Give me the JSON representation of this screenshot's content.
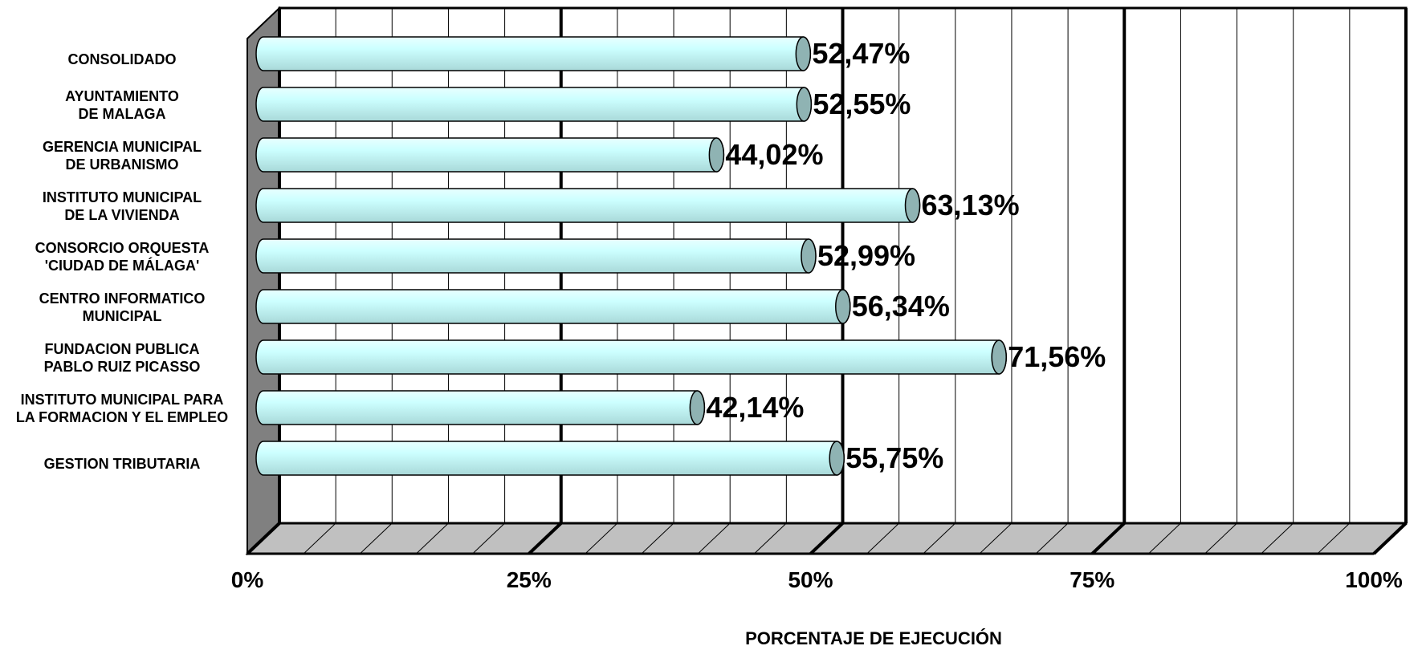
{
  "chart_data": {
    "type": "bar",
    "orientation": "horizontal",
    "style": "3d-cylinder",
    "categories": [
      "CONSOLIDADO",
      "AYUNTAMIENTO\nDE MALAGA",
      "GERENCIA MUNICIPAL\nDE URBANISMO",
      "INSTITUTO MUNICIPAL\nDE LA VIVIENDA",
      "CONSORCIO ORQUESTA\n'CIUDAD DE MÁLAGA'",
      "CENTRO INFORMATICO\nMUNICIPAL",
      "FUNDACION PUBLICA\nPABLO RUIZ PICASSO",
      "INSTITUTO MUNICIPAL PARA\nLA FORMACION Y EL EMPLEO",
      "GESTION TRIBUTARIA"
    ],
    "values": [
      52.47,
      52.55,
      44.02,
      63.13,
      52.99,
      56.34,
      71.56,
      42.14,
      55.75
    ],
    "data_labels": [
      "52,47%",
      "52,55%",
      "44,02%",
      "63,13%",
      "52,99%",
      "56,34%",
      "71,56%",
      "42,14%",
      "55,75%"
    ],
    "xlim": [
      0,
      100
    ],
    "xticks": [
      0,
      25,
      50,
      75,
      100
    ],
    "xtick_labels": [
      "0%",
      "25%",
      "50%",
      "75%",
      "100%"
    ],
    "xlabel": "PORCENTAJE DE EJECUCIÓN",
    "ylabel": "",
    "title": "",
    "grid": true,
    "legend": "none",
    "colors": {
      "bar_fill": "#ccffff",
      "bar_cap": "#8fb3b3",
      "side_wall": "#808080",
      "floor": "#c0c0c0",
      "grid": "#000000",
      "text": "#000000"
    }
  }
}
